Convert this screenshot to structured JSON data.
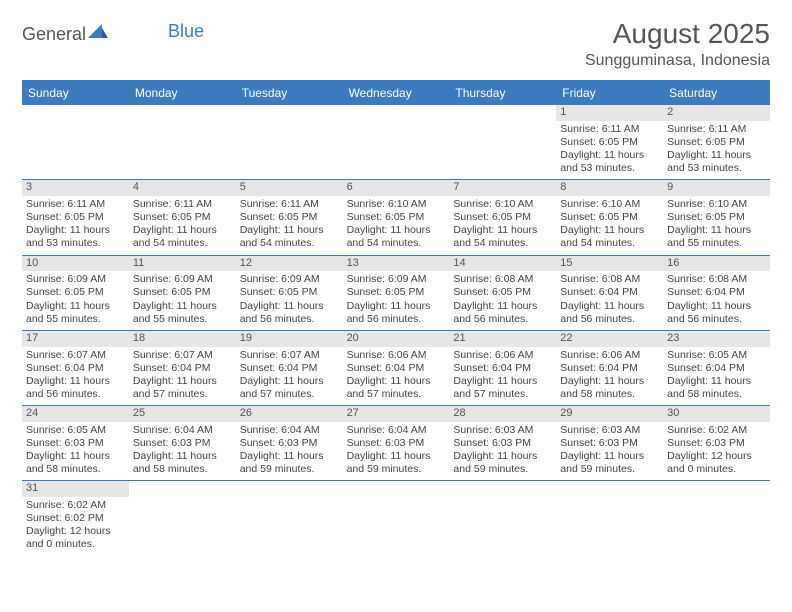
{
  "logo": {
    "text1": "General",
    "text2": "Blue",
    "sail_color": "#3b7bc0"
  },
  "header": {
    "month_title": "August 2025",
    "location": "Sungguminasa, Indonesia"
  },
  "style": {
    "header_bg": "#3b7bc0",
    "header_fg": "#ffffff",
    "daynum_bg": "#e6e6e6",
    "border_color": "#3b7bc0",
    "text_color": "#444444",
    "font_family": "Arial",
    "month_title_fontsize": 28,
    "location_fontsize": 16,
    "dayhead_fontsize": 12,
    "cell_fontsize": 10.5
  },
  "daynames": [
    "Sunday",
    "Monday",
    "Tuesday",
    "Wednesday",
    "Thursday",
    "Friday",
    "Saturday"
  ],
  "weeks": [
    [
      null,
      null,
      null,
      null,
      null,
      {
        "n": "1",
        "sr": "Sunrise: 6:11 AM",
        "ss": "Sunset: 6:05 PM",
        "dl": "Daylight: 11 hours and 53 minutes."
      },
      {
        "n": "2",
        "sr": "Sunrise: 6:11 AM",
        "ss": "Sunset: 6:05 PM",
        "dl": "Daylight: 11 hours and 53 minutes."
      }
    ],
    [
      {
        "n": "3",
        "sr": "Sunrise: 6:11 AM",
        "ss": "Sunset: 6:05 PM",
        "dl": "Daylight: 11 hours and 53 minutes."
      },
      {
        "n": "4",
        "sr": "Sunrise: 6:11 AM",
        "ss": "Sunset: 6:05 PM",
        "dl": "Daylight: 11 hours and 54 minutes."
      },
      {
        "n": "5",
        "sr": "Sunrise: 6:11 AM",
        "ss": "Sunset: 6:05 PM",
        "dl": "Daylight: 11 hours and 54 minutes."
      },
      {
        "n": "6",
        "sr": "Sunrise: 6:10 AM",
        "ss": "Sunset: 6:05 PM",
        "dl": "Daylight: 11 hours and 54 minutes."
      },
      {
        "n": "7",
        "sr": "Sunrise: 6:10 AM",
        "ss": "Sunset: 6:05 PM",
        "dl": "Daylight: 11 hours and 54 minutes."
      },
      {
        "n": "8",
        "sr": "Sunrise: 6:10 AM",
        "ss": "Sunset: 6:05 PM",
        "dl": "Daylight: 11 hours and 54 minutes."
      },
      {
        "n": "9",
        "sr": "Sunrise: 6:10 AM",
        "ss": "Sunset: 6:05 PM",
        "dl": "Daylight: 11 hours and 55 minutes."
      }
    ],
    [
      {
        "n": "10",
        "sr": "Sunrise: 6:09 AM",
        "ss": "Sunset: 6:05 PM",
        "dl": "Daylight: 11 hours and 55 minutes."
      },
      {
        "n": "11",
        "sr": "Sunrise: 6:09 AM",
        "ss": "Sunset: 6:05 PM",
        "dl": "Daylight: 11 hours and 55 minutes."
      },
      {
        "n": "12",
        "sr": "Sunrise: 6:09 AM",
        "ss": "Sunset: 6:05 PM",
        "dl": "Daylight: 11 hours and 56 minutes."
      },
      {
        "n": "13",
        "sr": "Sunrise: 6:09 AM",
        "ss": "Sunset: 6:05 PM",
        "dl": "Daylight: 11 hours and 56 minutes."
      },
      {
        "n": "14",
        "sr": "Sunrise: 6:08 AM",
        "ss": "Sunset: 6:05 PM",
        "dl": "Daylight: 11 hours and 56 minutes."
      },
      {
        "n": "15",
        "sr": "Sunrise: 6:08 AM",
        "ss": "Sunset: 6:04 PM",
        "dl": "Daylight: 11 hours and 56 minutes."
      },
      {
        "n": "16",
        "sr": "Sunrise: 6:08 AM",
        "ss": "Sunset: 6:04 PM",
        "dl": "Daylight: 11 hours and 56 minutes."
      }
    ],
    [
      {
        "n": "17",
        "sr": "Sunrise: 6:07 AM",
        "ss": "Sunset: 6:04 PM",
        "dl": "Daylight: 11 hours and 56 minutes."
      },
      {
        "n": "18",
        "sr": "Sunrise: 6:07 AM",
        "ss": "Sunset: 6:04 PM",
        "dl": "Daylight: 11 hours and 57 minutes."
      },
      {
        "n": "19",
        "sr": "Sunrise: 6:07 AM",
        "ss": "Sunset: 6:04 PM",
        "dl": "Daylight: 11 hours and 57 minutes."
      },
      {
        "n": "20",
        "sr": "Sunrise: 6:06 AM",
        "ss": "Sunset: 6:04 PM",
        "dl": "Daylight: 11 hours and 57 minutes."
      },
      {
        "n": "21",
        "sr": "Sunrise: 6:06 AM",
        "ss": "Sunset: 6:04 PM",
        "dl": "Daylight: 11 hours and 57 minutes."
      },
      {
        "n": "22",
        "sr": "Sunrise: 6:06 AM",
        "ss": "Sunset: 6:04 PM",
        "dl": "Daylight: 11 hours and 58 minutes."
      },
      {
        "n": "23",
        "sr": "Sunrise: 6:05 AM",
        "ss": "Sunset: 6:04 PM",
        "dl": "Daylight: 11 hours and 58 minutes."
      }
    ],
    [
      {
        "n": "24",
        "sr": "Sunrise: 6:05 AM",
        "ss": "Sunset: 6:03 PM",
        "dl": "Daylight: 11 hours and 58 minutes."
      },
      {
        "n": "25",
        "sr": "Sunrise: 6:04 AM",
        "ss": "Sunset: 6:03 PM",
        "dl": "Daylight: 11 hours and 58 minutes."
      },
      {
        "n": "26",
        "sr": "Sunrise: 6:04 AM",
        "ss": "Sunset: 6:03 PM",
        "dl": "Daylight: 11 hours and 59 minutes."
      },
      {
        "n": "27",
        "sr": "Sunrise: 6:04 AM",
        "ss": "Sunset: 6:03 PM",
        "dl": "Daylight: 11 hours and 59 minutes."
      },
      {
        "n": "28",
        "sr": "Sunrise: 6:03 AM",
        "ss": "Sunset: 6:03 PM",
        "dl": "Daylight: 11 hours and 59 minutes."
      },
      {
        "n": "29",
        "sr": "Sunrise: 6:03 AM",
        "ss": "Sunset: 6:03 PM",
        "dl": "Daylight: 11 hours and 59 minutes."
      },
      {
        "n": "30",
        "sr": "Sunrise: 6:02 AM",
        "ss": "Sunset: 6:03 PM",
        "dl": "Daylight: 12 hours and 0 minutes."
      }
    ],
    [
      {
        "n": "31",
        "sr": "Sunrise: 6:02 AM",
        "ss": "Sunset: 6:02 PM",
        "dl": "Daylight: 12 hours and 0 minutes."
      },
      null,
      null,
      null,
      null,
      null,
      null
    ]
  ]
}
